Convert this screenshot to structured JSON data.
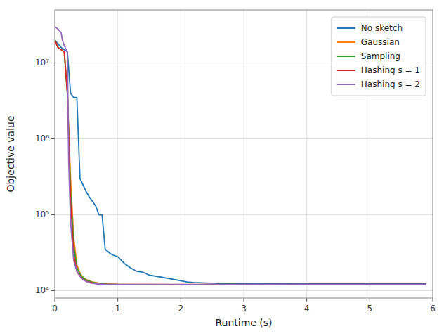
{
  "chart_data": {
    "type": "line",
    "xlabel": "Runtime (s)",
    "ylabel": "Objective value",
    "log": "y",
    "grid": true,
    "legend": "upper right",
    "xlim": [
      0,
      6
    ],
    "xticks": [
      0,
      1,
      2,
      3,
      4,
      5,
      6
    ],
    "ylim": [
      8000,
      50000000
    ],
    "yticks": [
      {
        "value": 10000,
        "label": "10⁴"
      },
      {
        "value": 100000,
        "label": "10⁵"
      },
      {
        "value": 1000000,
        "label": "10⁶"
      },
      {
        "value": 10000000,
        "label": "10⁷"
      }
    ],
    "series": [
      {
        "name": "No sketch",
        "color": "#1f77b4",
        "x": [
          0,
          0.1,
          0.15,
          0.2,
          0.25,
          0.3,
          0.35,
          0.4,
          0.5,
          0.55,
          0.6,
          0.65,
          0.7,
          0.75,
          0.8,
          0.9,
          1.0,
          1.1,
          1.2,
          1.3,
          1.4,
          1.5,
          1.6,
          1.7,
          1.8,
          1.9,
          2.0,
          2.1,
          2.2,
          2.4,
          2.6,
          3.0,
          4.0,
          5.0,
          5.9
        ],
        "values": [
          20000000.0,
          16000000.0,
          15000000.0,
          14000000.0,
          4000000.0,
          3500000.0,
          3500000.0,
          300000.0,
          200000.0,
          170000.0,
          150000.0,
          130000.0,
          100000.0,
          100000.0,
          35000.0,
          30000.0,
          28000.0,
          23000.0,
          20000.0,
          18000.0,
          17500.0,
          16000.0,
          15500.0,
          15000.0,
          14500.0,
          14000.0,
          13500.0,
          13000.0,
          12800.0,
          12600.0,
          12500.0,
          12400.0,
          12300.0,
          12300.0,
          12300.0
        ]
      },
      {
        "name": "Gaussian",
        "color": "#ff7f0e",
        "x": [
          0,
          0.05,
          0.1,
          0.15,
          0.2,
          0.25,
          0.3,
          0.35,
          0.4,
          0.45,
          0.5,
          0.55,
          0.6,
          0.7,
          0.8,
          1.0,
          2.0,
          5.9
        ],
        "values": [
          20000000.0,
          16000000.0,
          15000000.0,
          14000000.0,
          4000000.0,
          300000.0,
          50000.0,
          22000.0,
          17000.0,
          15000.0,
          14000.0,
          13500.0,
          13000.0,
          12600.0,
          12300.0,
          12100.0,
          12050.0,
          12050.0
        ]
      },
      {
        "name": "Sampling",
        "color": "#2ca02c",
        "x": [
          0,
          0.05,
          0.1,
          0.15,
          0.2,
          0.25,
          0.3,
          0.35,
          0.4,
          0.45,
          0.5,
          0.6,
          0.7,
          0.8,
          1.0,
          2.0,
          5.9
        ],
        "values": [
          20000000.0,
          16000000.0,
          15000000.0,
          14000000.0,
          4000000.0,
          200000.0,
          40000.0,
          20000.0,
          16500.0,
          14500.0,
          13800.0,
          12800.0,
          12400.0,
          12200.0,
          12100.0,
          12050.0,
          12050.0
        ]
      },
      {
        "name": "Hashing s = 1",
        "color": "#d62728",
        "x": [
          0,
          0.05,
          0.1,
          0.15,
          0.2,
          0.25,
          0.3,
          0.35,
          0.4,
          0.45,
          0.5,
          0.6,
          0.7,
          0.8,
          1.0,
          2.0,
          5.9
        ],
        "values": [
          20000000.0,
          16000000.0,
          15000000.0,
          14000000.0,
          4000000.0,
          150000.0,
          30000.0,
          18000.0,
          15500.0,
          14000.0,
          13300.0,
          12600.0,
          12200.0,
          12100.0,
          12100.0,
          12100.0,
          12100.0
        ]
      },
      {
        "name": "Hashing s = 2",
        "color": "#9467bd",
        "x": [
          0,
          0.05,
          0.1,
          0.12,
          0.15,
          0.18,
          0.2,
          0.22,
          0.25,
          0.28,
          0.3,
          0.35,
          0.4,
          0.45,
          0.5,
          0.6,
          0.7,
          0.8,
          1.0,
          2.0,
          5.9
        ],
        "values": [
          30000000.0,
          28000000.0,
          25000000.0,
          20000000.0,
          17000000.0,
          15000000.0,
          14000000.0,
          500000.0,
          80000.0,
          40000.0,
          25000.0,
          18000.0,
          15500.0,
          14000.0,
          13200.0,
          12500.0,
          12200.0,
          12100.0,
          12050.0,
          12050.0,
          12050.0
        ]
      }
    ]
  }
}
